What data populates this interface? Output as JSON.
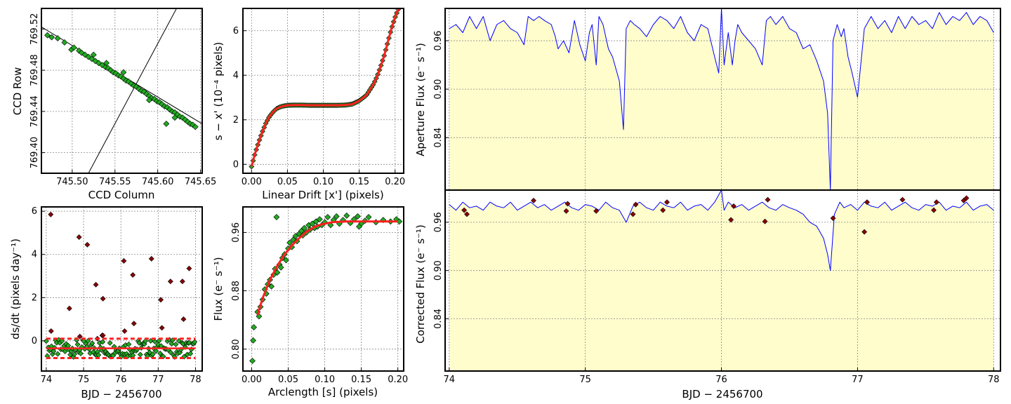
{
  "colors": {
    "marker": "#22aa22",
    "marker_edge": "#000000",
    "outlier": "#8b0000",
    "fit": "#ff2020",
    "flux_line": "#0000ff",
    "flux_fill": "#fffdcc",
    "grid": "#888888"
  },
  "chart_data": [
    {
      "id": "ccd",
      "type": "scatter",
      "title": "",
      "xlabel": "CCD Column",
      "ylabel": "CCD Row",
      "xlim": [
        745.464,
        745.652
      ],
      "ylim": [
        769.38,
        769.54
      ],
      "xticks": [
        745.5,
        745.55,
        745.6,
        745.65
      ],
      "xticklabels": [
        "745.50",
        "745.55",
        "745.60",
        "745.65"
      ],
      "yticks": [
        769.4,
        769.44,
        769.48,
        769.52
      ],
      "yticklabels": [
        "769.40",
        "769.44",
        "769.48",
        "769.52"
      ],
      "grid": true,
      "fit_line": [
        [
          745.464,
          769.522
        ],
        [
          745.652,
          769.428
        ]
      ],
      "drift_line": [
        [
          745.519,
          769.38
        ],
        [
          745.622,
          769.54
        ]
      ],
      "points": [
        [
          745.471,
          769.514
        ],
        [
          745.476,
          769.512
        ],
        [
          745.483,
          769.511
        ],
        [
          745.491,
          769.507
        ],
        [
          745.499,
          769.5
        ],
        [
          745.502,
          769.502
        ],
        [
          745.508,
          769.499
        ],
        [
          745.511,
          769.497
        ],
        [
          745.515,
          769.495
        ],
        [
          745.519,
          769.493
        ],
        [
          745.523,
          769.491
        ],
        [
          745.527,
          769.489
        ],
        [
          745.531,
          769.487
        ],
        [
          745.535,
          769.485
        ],
        [
          745.539,
          769.483
        ],
        [
          745.542,
          769.482
        ],
        [
          745.545,
          769.48
        ],
        [
          745.548,
          769.478
        ],
        [
          745.551,
          769.477
        ],
        [
          745.554,
          769.475
        ],
        [
          745.557,
          769.474
        ],
        [
          745.56,
          769.472
        ],
        [
          745.563,
          769.47
        ],
        [
          745.566,
          769.469
        ],
        [
          745.569,
          769.467
        ],
        [
          745.572,
          769.465
        ],
        [
          745.575,
          769.464
        ],
        [
          745.578,
          769.462
        ],
        [
          745.581,
          769.46
        ],
        [
          745.584,
          769.459
        ],
        [
          745.587,
          769.457
        ],
        [
          745.59,
          769.455
        ],
        [
          745.593,
          769.453
        ],
        [
          745.596,
          769.452
        ],
        [
          745.599,
          769.45
        ],
        [
          745.602,
          769.449
        ],
        [
          745.605,
          769.447
        ],
        [
          745.608,
          769.445
        ],
        [
          745.611,
          769.444
        ],
        [
          745.614,
          769.442
        ],
        [
          745.617,
          769.44
        ],
        [
          745.62,
          769.439
        ],
        [
          745.623,
          769.437
        ],
        [
          745.626,
          769.435
        ],
        [
          745.629,
          769.434
        ],
        [
          745.632,
          769.432
        ],
        [
          745.635,
          769.43
        ],
        [
          745.638,
          769.428
        ],
        [
          745.641,
          769.427
        ],
        [
          745.644,
          769.425
        ],
        [
          745.61,
          769.428
        ],
        [
          745.56,
          769.478
        ],
        [
          745.54,
          769.487
        ],
        [
          745.525,
          769.495
        ],
        [
          745.59,
          769.451
        ],
        [
          745.62,
          769.434
        ]
      ]
    },
    {
      "id": "drift",
      "type": "scatter",
      "title": "",
      "xlabel": "Linear Drift [x'] (pixels)",
      "ylabel": "s − x' (10⁻⁴ pixels)",
      "xlim": [
        -0.012,
        0.212
      ],
      "ylim": [
        -0.4,
        7.0
      ],
      "xticks": [
        0.0,
        0.05,
        0.1,
        0.15,
        0.2
      ],
      "xticklabels": [
        "0.00",
        "0.05",
        "0.10",
        "0.15",
        "0.20"
      ],
      "yticks": [
        0,
        2,
        4,
        6
      ],
      "yticklabels": [
        "0",
        "2",
        "4",
        "6"
      ],
      "grid": true,
      "fit_x": [
        0.0,
        0.005,
        0.01,
        0.015,
        0.02,
        0.025,
        0.03,
        0.035,
        0.04,
        0.045,
        0.05,
        0.06,
        0.07,
        0.08,
        0.09,
        0.1,
        0.11,
        0.12,
        0.13,
        0.14,
        0.15,
        0.16,
        0.17,
        0.175,
        0.18,
        0.185,
        0.19,
        0.195,
        0.2,
        0.205
      ],
      "fit_y": [
        -0.1,
        0.5,
        1.0,
        1.45,
        1.85,
        2.15,
        2.35,
        2.5,
        2.58,
        2.62,
        2.65,
        2.66,
        2.66,
        2.65,
        2.65,
        2.65,
        2.65,
        2.65,
        2.66,
        2.7,
        2.85,
        3.1,
        3.6,
        3.95,
        4.4,
        4.9,
        5.5,
        6.1,
        6.6,
        7.0
      ]
    },
    {
      "id": "dsdt",
      "type": "scatter",
      "title": "",
      "xlabel": "BJD − 2456700",
      "ylabel": "ds/dt (pixels day⁻¹)",
      "xlim": [
        73.87,
        78.18
      ],
      "ylim": [
        -1.4,
        6.2
      ],
      "xticks": [
        74,
        75,
        76,
        77,
        78
      ],
      "xticklabels": [
        "74",
        "75",
        "76",
        "77",
        "78"
      ],
      "yticks": [
        0,
        2,
        4,
        6
      ],
      "yticklabels": [
        "0",
        "2",
        "4",
        "6"
      ],
      "grid": true,
      "threshold_upper": 0.1,
      "threshold_lower": -0.8,
      "median": -0.35,
      "outliers": [
        [
          74.12,
          5.85
        ],
        [
          74.13,
          0.45
        ],
        [
          74.62,
          1.5
        ],
        [
          74.88,
          4.8
        ],
        [
          74.9,
          0.2
        ],
        [
          75.1,
          4.45
        ],
        [
          75.33,
          2.6
        ],
        [
          75.37,
          0.1
        ],
        [
          75.5,
          0.25
        ],
        [
          75.52,
          1.95
        ],
        [
          75.52,
          0.25
        ],
        [
          76.08,
          3.7
        ],
        [
          76.1,
          0.45
        ],
        [
          76.32,
          3.05
        ],
        [
          76.35,
          0.8
        ],
        [
          76.82,
          3.8
        ],
        [
          77.07,
          1.9
        ],
        [
          77.1,
          0.6
        ],
        [
          77.33,
          2.75
        ],
        [
          77.65,
          2.75
        ],
        [
          77.68,
          1.0
        ],
        [
          77.83,
          3.35
        ]
      ]
    },
    {
      "id": "flux_arc",
      "type": "scatter",
      "title": "",
      "xlabel": "Arclength [s] (pixels)",
      "ylabel": "Flux (e⁻ s⁻¹)",
      "xlim": [
        -0.012,
        0.208
      ],
      "ylim": [
        0.77,
        0.995
      ],
      "xticks": [
        0.0,
        0.05,
        0.1,
        0.15,
        0.2
      ],
      "xticklabels": [
        "0.00",
        "0.05",
        "0.10",
        "0.15",
        "0.20"
      ],
      "yticks": [
        0.8,
        0.88,
        0.96
      ],
      "yticklabels": [
        "0.80",
        "0.88",
        "0.96"
      ],
      "grid": true,
      "fit_x": [
        0.008,
        0.015,
        0.025,
        0.035,
        0.045,
        0.055,
        0.065,
        0.075,
        0.085,
        0.095,
        0.11,
        0.13,
        0.15,
        0.17,
        0.19,
        0.2
      ],
      "fit_y": [
        0.847,
        0.87,
        0.895,
        0.914,
        0.93,
        0.942,
        0.952,
        0.961,
        0.967,
        0.971,
        0.974,
        0.975,
        0.975,
        0.975,
        0.975,
        0.975
      ],
      "points": [
        [
          0.001,
          0.784
        ],
        [
          0.002,
          0.812
        ],
        [
          0.003,
          0.83
        ],
        [
          0.008,
          0.851
        ],
        [
          0.01,
          0.845
        ],
        [
          0.012,
          0.858
        ],
        [
          0.015,
          0.868
        ],
        [
          0.018,
          0.882
        ],
        [
          0.02,
          0.876
        ],
        [
          0.022,
          0.889
        ],
        [
          0.025,
          0.895
        ],
        [
          0.027,
          0.886
        ],
        [
          0.03,
          0.902
        ],
        [
          0.032,
          0.91
        ],
        [
          0.034,
          0.981
        ],
        [
          0.035,
          0.905
        ],
        [
          0.038,
          0.916
        ],
        [
          0.04,
          0.912
        ],
        [
          0.042,
          0.925
        ],
        [
          0.045,
          0.93
        ],
        [
          0.047,
          0.922
        ],
        [
          0.05,
          0.938
        ],
        [
          0.052,
          0.946
        ],
        [
          0.055,
          0.94
        ],
        [
          0.057,
          0.95
        ],
        [
          0.06,
          0.955
        ],
        [
          0.062,
          0.948
        ],
        [
          0.065,
          0.958
        ],
        [
          0.068,
          0.962
        ],
        [
          0.07,
          0.956
        ],
        [
          0.072,
          0.966
        ],
        [
          0.075,
          0.96
        ],
        [
          0.078,
          0.97
        ],
        [
          0.08,
          0.964
        ],
        [
          0.083,
          0.972
        ],
        [
          0.086,
          0.966
        ],
        [
          0.088,
          0.975
        ],
        [
          0.09,
          0.968
        ],
        [
          0.093,
          0.978
        ],
        [
          0.096,
          0.97
        ],
        [
          0.1,
          0.974
        ],
        [
          0.104,
          0.981
        ],
        [
          0.108,
          0.97
        ],
        [
          0.112,
          0.977
        ],
        [
          0.116,
          0.982
        ],
        [
          0.12,
          0.972
        ],
        [
          0.125,
          0.977
        ],
        [
          0.13,
          0.983
        ],
        [
          0.135,
          0.973
        ],
        [
          0.14,
          0.978
        ],
        [
          0.145,
          0.982
        ],
        [
          0.15,
          0.972
        ],
        [
          0.155,
          0.976
        ],
        [
          0.16,
          0.981
        ],
        [
          0.17,
          0.974
        ],
        [
          0.18,
          0.977
        ],
        [
          0.19,
          0.975
        ],
        [
          0.198,
          0.978
        ],
        [
          0.202,
          0.975
        ],
        [
          0.147,
          0.968
        ]
      ]
    },
    {
      "id": "aperture",
      "type": "line",
      "title": "",
      "xlabel": "",
      "ylabel": "Aperture Flux (e⁻ s⁻¹)",
      "xlim": [
        73.97,
        78.05
      ],
      "ylim": [
        0.775,
        1.0
      ],
      "yticks": [
        0.84,
        0.9,
        0.96
      ],
      "yticklabels": [
        "0.84",
        "0.90",
        "0.96"
      ],
      "grid": true,
      "x": [
        74.0,
        74.05,
        74.1,
        74.15,
        74.2,
        74.25,
        74.3,
        74.35,
        74.4,
        74.45,
        74.5,
        74.55,
        74.58,
        74.62,
        74.66,
        74.7,
        74.75,
        74.78,
        74.8,
        74.84,
        74.88,
        74.92,
        74.96,
        75.0,
        75.03,
        75.05,
        75.08,
        75.1,
        75.13,
        75.17,
        75.2,
        75.25,
        75.28,
        75.3,
        75.33,
        75.36,
        75.4,
        75.45,
        75.5,
        75.55,
        75.6,
        75.65,
        75.7,
        75.75,
        75.8,
        75.85,
        75.9,
        75.95,
        75.98,
        76.0,
        76.02,
        76.05,
        76.08,
        76.1,
        76.12,
        76.15,
        76.2,
        76.25,
        76.3,
        76.33,
        76.36,
        76.4,
        76.45,
        76.5,
        76.55,
        76.6,
        76.65,
        76.7,
        76.75,
        76.78,
        76.8,
        76.82,
        76.85,
        76.88,
        76.9,
        76.93,
        76.96,
        77.0,
        77.05,
        77.1,
        77.15,
        77.2,
        77.25,
        77.3,
        77.35,
        77.4,
        77.45,
        77.5,
        77.55,
        77.6,
        77.65,
        77.7,
        77.75,
        77.8,
        77.85,
        77.9,
        77.95,
        78.0
      ],
      "y": [
        0.975,
        0.98,
        0.97,
        0.99,
        0.975,
        0.99,
        0.96,
        0.98,
        0.985,
        0.975,
        0.97,
        0.955,
        0.99,
        0.985,
        0.99,
        0.985,
        0.98,
        0.965,
        0.95,
        0.96,
        0.945,
        0.985,
        0.955,
        0.935,
        0.97,
        0.98,
        0.93,
        0.99,
        0.98,
        0.95,
        0.94,
        0.91,
        0.85,
        0.975,
        0.985,
        0.98,
        0.975,
        0.965,
        0.98,
        0.99,
        0.985,
        0.975,
        0.99,
        0.97,
        0.96,
        0.98,
        0.975,
        0.94,
        0.92,
        1.0,
        0.93,
        0.97,
        0.93,
        0.96,
        0.98,
        0.97,
        0.96,
        0.95,
        0.93,
        0.985,
        0.99,
        0.98,
        0.99,
        0.975,
        0.97,
        0.95,
        0.955,
        0.935,
        0.91,
        0.87,
        0.775,
        0.96,
        0.98,
        0.965,
        0.975,
        0.94,
        0.92,
        0.89,
        0.975,
        0.99,
        0.975,
        0.985,
        0.97,
        0.99,
        0.975,
        0.99,
        0.98,
        0.985,
        0.975,
        0.995,
        0.98,
        0.99,
        0.985,
        0.995,
        0.98,
        0.99,
        0.985,
        0.97
      ]
    },
    {
      "id": "corrected",
      "type": "line",
      "title": "",
      "xlabel": "BJD − 2456700",
      "ylabel": "Corrected Flux (e⁻ s⁻¹)",
      "xlim": [
        73.97,
        78.05
      ],
      "ylim": [
        0.775,
        1.0
      ],
      "xticks": [
        74,
        75,
        76,
        77,
        78
      ],
      "xticklabels": [
        "74",
        "75",
        "76",
        "77",
        "78"
      ],
      "yticks": [
        0.84,
        0.9,
        0.96
      ],
      "yticklabels": [
        "0.84",
        "0.90",
        "0.96"
      ],
      "grid": true,
      "x": [
        74.0,
        74.05,
        74.1,
        74.15,
        74.2,
        74.25,
        74.3,
        74.35,
        74.4,
        74.45,
        74.5,
        74.55,
        74.6,
        74.65,
        74.7,
        74.75,
        74.8,
        74.85,
        74.9,
        74.95,
        75.0,
        75.05,
        75.1,
        75.15,
        75.2,
        75.25,
        75.3,
        75.35,
        75.4,
        75.45,
        75.5,
        75.55,
        75.6,
        75.65,
        75.7,
        75.75,
        75.8,
        75.85,
        75.9,
        75.95,
        76.0,
        76.02,
        76.05,
        76.1,
        76.15,
        76.2,
        76.25,
        76.3,
        76.35,
        76.4,
        76.45,
        76.5,
        76.55,
        76.6,
        76.65,
        76.7,
        76.75,
        76.78,
        76.8,
        76.83,
        76.87,
        76.9,
        76.95,
        77.0,
        77.05,
        77.1,
        77.15,
        77.2,
        77.25,
        77.3,
        77.35,
        77.4,
        77.45,
        77.5,
        77.55,
        77.6,
        77.65,
        77.7,
        77.75,
        77.8,
        77.85,
        77.9,
        77.95,
        78.0
      ],
      "y": [
        0.982,
        0.975,
        0.985,
        0.978,
        0.98,
        0.975,
        0.985,
        0.98,
        0.978,
        0.985,
        0.975,
        0.98,
        0.985,
        0.978,
        0.982,
        0.975,
        0.98,
        0.985,
        0.978,
        0.975,
        0.982,
        0.98,
        0.975,
        0.985,
        0.978,
        0.975,
        0.96,
        0.98,
        0.985,
        0.978,
        0.975,
        0.985,
        0.98,
        0.978,
        0.985,
        0.975,
        0.98,
        0.982,
        0.975,
        0.985,
        1.0,
        0.975,
        0.985,
        0.978,
        0.982,
        0.975,
        0.98,
        0.985,
        0.978,
        0.975,
        0.982,
        0.978,
        0.975,
        0.97,
        0.96,
        0.955,
        0.94,
        0.92,
        0.9,
        0.97,
        0.985,
        0.978,
        0.982,
        0.975,
        0.985,
        0.98,
        0.978,
        0.985,
        0.975,
        0.98,
        0.985,
        0.978,
        0.975,
        0.982,
        0.98,
        0.985,
        0.975,
        0.98,
        0.978,
        0.985,
        0.975,
        0.98,
        0.982,
        0.975
      ],
      "outliers": [
        [
          74.11,
          0.975
        ],
        [
          74.13,
          0.97
        ],
        [
          74.62,
          0.987
        ],
        [
          74.86,
          0.974
        ],
        [
          74.87,
          0.983
        ],
        [
          75.08,
          0.974
        ],
        [
          75.35,
          0.97
        ],
        [
          75.37,
          0.982
        ],
        [
          75.57,
          0.975
        ],
        [
          75.6,
          0.985
        ],
        [
          76.07,
          0.963
        ],
        [
          76.09,
          0.98
        ],
        [
          76.32,
          0.961
        ],
        [
          76.34,
          0.988
        ],
        [
          76.82,
          0.965
        ],
        [
          77.05,
          0.948
        ],
        [
          77.07,
          0.985
        ],
        [
          77.33,
          0.988
        ],
        [
          77.56,
          0.975
        ],
        [
          77.58,
          0.985
        ],
        [
          77.78,
          0.987
        ],
        [
          77.8,
          0.99
        ]
      ]
    }
  ]
}
